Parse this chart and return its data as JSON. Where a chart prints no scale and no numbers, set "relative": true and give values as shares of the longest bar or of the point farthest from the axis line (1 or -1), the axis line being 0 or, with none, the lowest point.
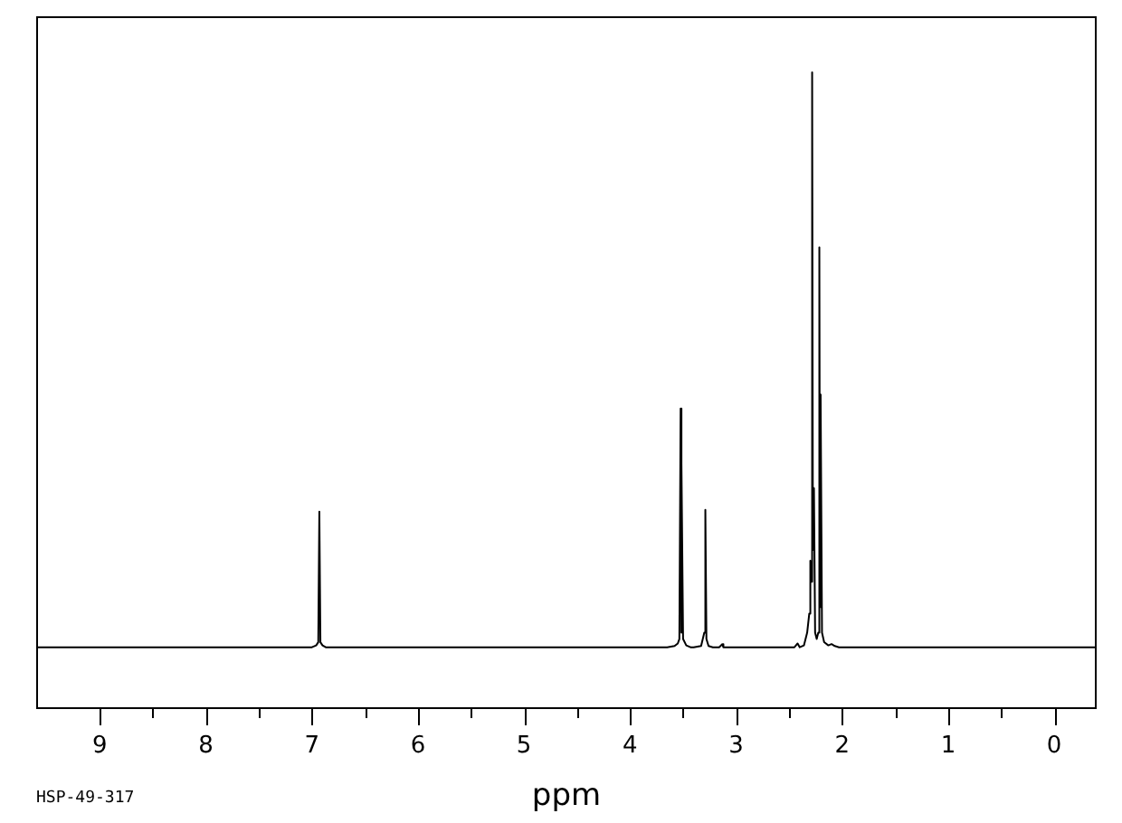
{
  "chart_data": {
    "type": "line",
    "relative": true,
    "xlabel": "ppm",
    "color": "#000000",
    "xlim": [
      9.6,
      -0.4
    ],
    "xticks": [
      9,
      {
        "value": 8.5,
        "label": null
      },
      8,
      {
        "value": 7.5,
        "label": null
      },
      7,
      {
        "value": 6.5,
        "label": null
      },
      6,
      {
        "value": 5.5,
        "label": null
      },
      5,
      {
        "value": 4.5,
        "label": null
      },
      4,
      {
        "value": 3.5,
        "label": null
      },
      3,
      {
        "value": 2.5,
        "label": null
      },
      2,
      {
        "value": 1.5,
        "label": null
      },
      1,
      {
        "value": 0.5,
        "label": null
      },
      0
    ],
    "x": [
      9.6,
      7.0,
      6.96,
      6.94,
      6.93,
      6.92,
      6.9,
      6.87,
      3.65,
      3.58,
      3.55,
      3.535,
      3.523,
      3.518,
      3.513,
      3.5,
      3.47,
      3.43,
      3.4,
      3.33,
      3.3,
      3.29,
      3.28,
      3.26,
      3.22,
      3.16,
      3.13,
      3.12,
      2.45,
      2.42,
      2.4,
      2.36,
      2.33,
      2.31,
      2.3,
      2.29,
      2.283,
      2.276,
      2.266,
      2.255,
      2.24,
      2.225,
      2.215,
      2.209,
      2.203,
      2.19,
      2.17,
      2.13,
      2.1,
      2.07,
      2.03,
      -0.4
    ],
    "values": [
      0.097,
      0.097,
      0.1,
      0.105,
      0.31,
      0.105,
      0.1,
      0.097,
      0.097,
      0.099,
      0.103,
      0.11,
      0.472,
      0.12,
      0.386,
      0.11,
      0.1,
      0.097,
      0.097,
      0.099,
      0.12,
      0.313,
      0.11,
      0.099,
      0.097,
      0.097,
      0.102,
      0.097,
      0.097,
      0.103,
      0.097,
      0.1,
      0.12,
      0.15,
      0.233,
      0.2,
      1.0,
      0.25,
      0.347,
      0.12,
      0.11,
      0.12,
      0.725,
      0.16,
      0.494,
      0.12,
      0.105,
      0.1,
      0.102,
      0.099,
      0.097,
      0.097
    ],
    "annotations": [
      "HSP-49-317"
    ]
  }
}
